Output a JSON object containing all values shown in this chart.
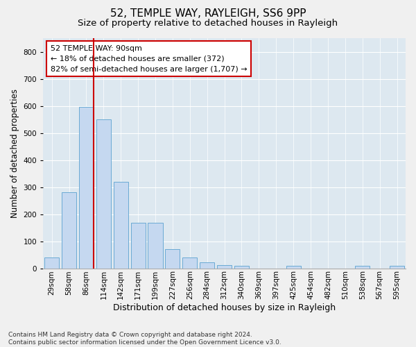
{
  "title1": "52, TEMPLE WAY, RAYLEIGH, SS6 9PP",
  "title2": "Size of property relative to detached houses in Rayleigh",
  "xlabel": "Distribution of detached houses by size in Rayleigh",
  "ylabel": "Number of detached properties",
  "categories": [
    "29sqm",
    "58sqm",
    "86sqm",
    "114sqm",
    "142sqm",
    "171sqm",
    "199sqm",
    "227sqm",
    "256sqm",
    "284sqm",
    "312sqm",
    "340sqm",
    "369sqm",
    "397sqm",
    "425sqm",
    "454sqm",
    "482sqm",
    "510sqm",
    "538sqm",
    "567sqm",
    "595sqm"
  ],
  "values": [
    40,
    280,
    595,
    550,
    320,
    168,
    168,
    70,
    40,
    22,
    12,
    10,
    0,
    0,
    8,
    0,
    0,
    0,
    10,
    0,
    10
  ],
  "bar_color": "#c5d8f0",
  "bar_edge_color": "#6aaad4",
  "vline_color": "#cc0000",
  "annotation_text": "52 TEMPLE WAY: 90sqm\n← 18% of detached houses are smaller (372)\n82% of semi-detached houses are larger (1,707) →",
  "annotation_box_color": "#ffffff",
  "annotation_box_edge": "#cc0000",
  "ylim": [
    0,
    850
  ],
  "yticks": [
    0,
    100,
    200,
    300,
    400,
    500,
    600,
    700,
    800
  ],
  "plot_bg": "#dde8f0",
  "fig_bg": "#f0f0f0",
  "grid_color": "#ffffff",
  "footer": "Contains HM Land Registry data © Crown copyright and database right 2024.\nContains public sector information licensed under the Open Government Licence v3.0.",
  "title1_fontsize": 11,
  "title2_fontsize": 9.5,
  "xlabel_fontsize": 9,
  "ylabel_fontsize": 8.5,
  "tick_fontsize": 7.5,
  "annotation_fontsize": 8,
  "footer_fontsize": 6.5
}
